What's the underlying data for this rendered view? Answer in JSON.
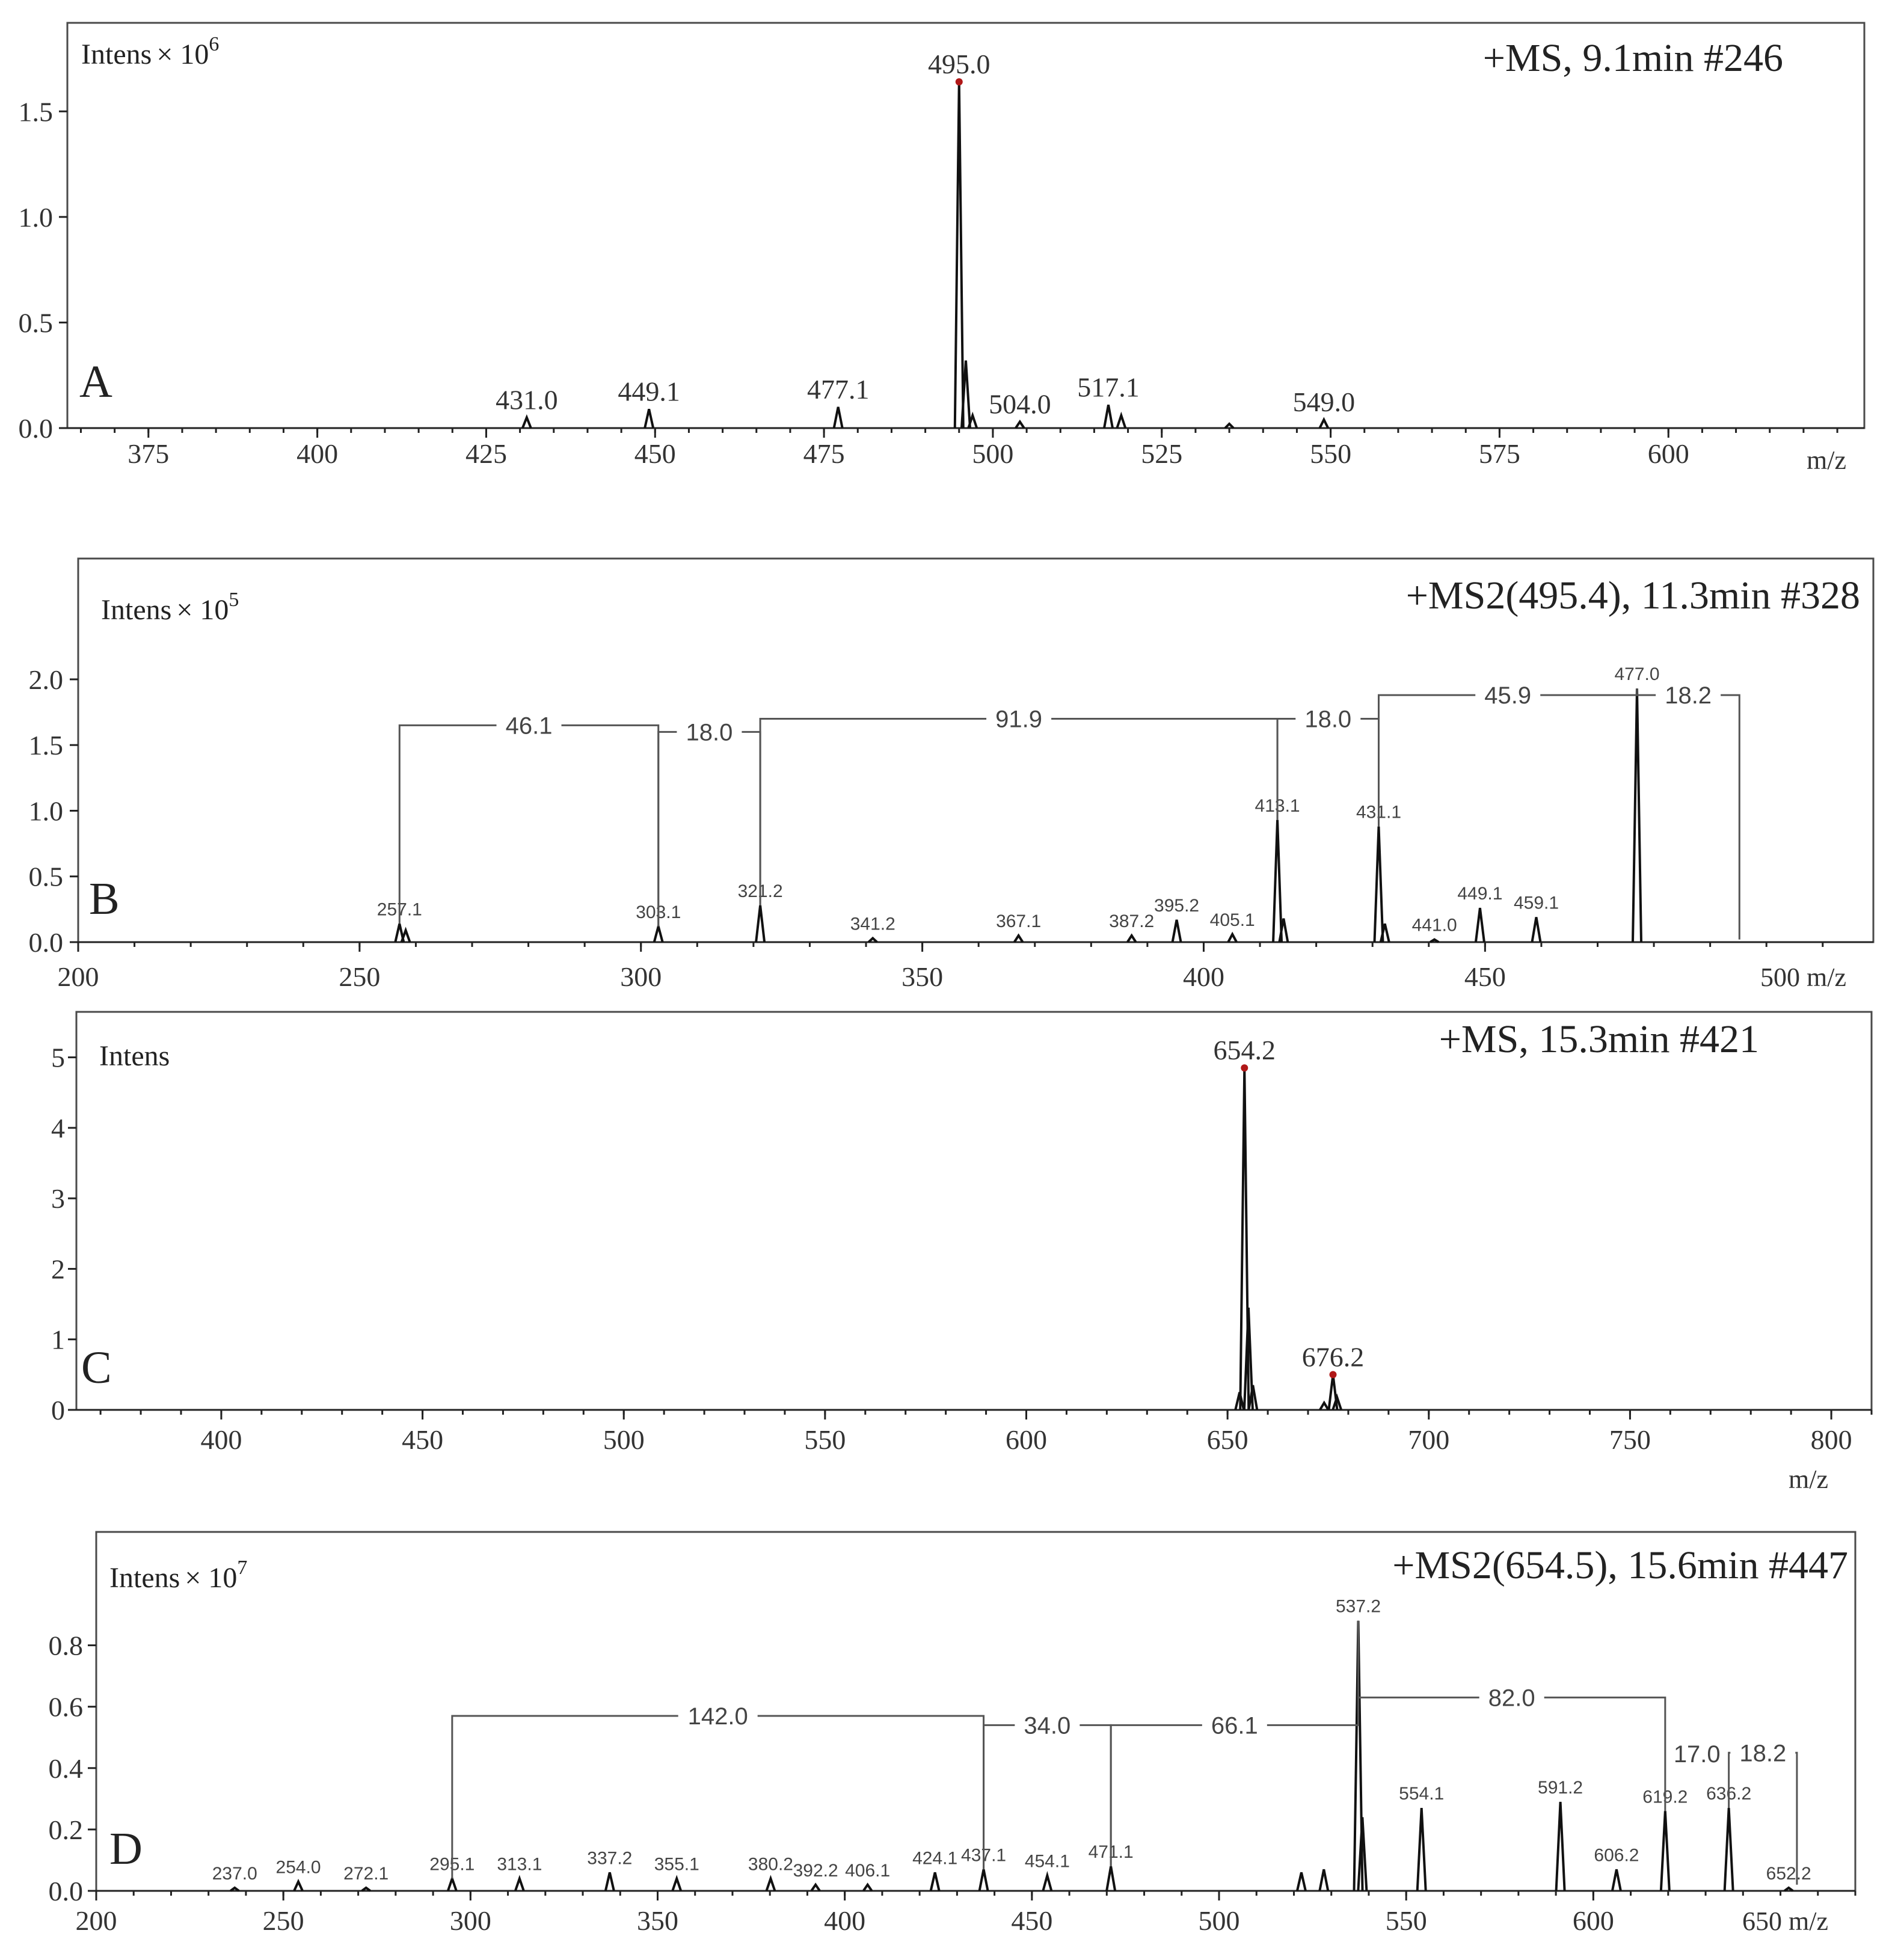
{
  "chart_data": [
    {
      "panel": "A",
      "type": "bar",
      "header": "+MS, 9.1min #246",
      "intens_label": "Intens",
      "intens_multiplier": "× 10",
      "intens_exponent": "6",
      "xunit": "m/z",
      "xlim": [
        363,
        629
      ],
      "ylim": [
        0,
        1.72
      ],
      "xticks": [
        375,
        400,
        425,
        450,
        475,
        500,
        525,
        550,
        575,
        600
      ],
      "yticks": [
        0.0,
        0.5,
        1.0,
        1.5
      ],
      "peaks": [
        {
          "x": 431.0,
          "y": 0.05,
          "label": "431.0"
        },
        {
          "x": 449.1,
          "y": 0.09,
          "label": "449.1"
        },
        {
          "x": 477.1,
          "y": 0.1,
          "label": "477.1"
        },
        {
          "x": 495.0,
          "y": 1.64,
          "label": "495.0"
        },
        {
          "x": 496.0,
          "y": 0.32,
          "label": ""
        },
        {
          "x": 497.0,
          "y": 0.06,
          "label": ""
        },
        {
          "x": 504.0,
          "y": 0.03,
          "label": "504.0"
        },
        {
          "x": 517.1,
          "y": 0.11,
          "label": "517.1"
        },
        {
          "x": 519.0,
          "y": 0.06,
          "label": ""
        },
        {
          "x": 535.0,
          "y": 0.02,
          "label": ""
        },
        {
          "x": 549.0,
          "y": 0.04,
          "label": "549.0"
        }
      ]
    },
    {
      "panel": "B",
      "type": "bar",
      "header": "+MS2(495.4), 11.3min #328",
      "intens_label": "Intens",
      "intens_multiplier": "× 10",
      "intens_exponent": "5",
      "xunit": "500 m/z",
      "xlim": [
        200,
        519
      ],
      "ylim": [
        0,
        2.32
      ],
      "xticks": [
        200,
        250,
        300,
        350,
        400,
        450
      ],
      "yticks": [
        0.0,
        0.5,
        1.0,
        1.5,
        2.0
      ],
      "peaks": [
        {
          "x": 257.1,
          "y": 0.14,
          "label": "257.1"
        },
        {
          "x": 258.2,
          "y": 0.09,
          "label": ""
        },
        {
          "x": 303.1,
          "y": 0.12,
          "label": "303.1"
        },
        {
          "x": 321.2,
          "y": 0.28,
          "label": "321.2"
        },
        {
          "x": 341.2,
          "y": 0.03,
          "label": "341.2"
        },
        {
          "x": 367.1,
          "y": 0.05,
          "label": "367.1"
        },
        {
          "x": 387.2,
          "y": 0.05,
          "label": "387.2"
        },
        {
          "x": 395.2,
          "y": 0.17,
          "label": "395.2"
        },
        {
          "x": 405.1,
          "y": 0.06,
          "label": "405.1"
        },
        {
          "x": 413.1,
          "y": 0.93,
          "label": "413.1"
        },
        {
          "x": 414.2,
          "y": 0.18,
          "label": ""
        },
        {
          "x": 431.1,
          "y": 0.88,
          "label": "431.1"
        },
        {
          "x": 432.2,
          "y": 0.14,
          "label": ""
        },
        {
          "x": 441.0,
          "y": 0.02,
          "label": "441.0"
        },
        {
          "x": 449.1,
          "y": 0.26,
          "label": "449.1"
        },
        {
          "x": 459.1,
          "y": 0.19,
          "label": "459.1"
        },
        {
          "x": 477.0,
          "y": 1.93,
          "label": "477.0"
        }
      ],
      "brackets": [
        {
          "x1": 257.1,
          "x2": 303.1,
          "level": 1.65,
          "label": "46.1"
        },
        {
          "x1": 303.1,
          "x2": 321.2,
          "level": 1.6,
          "label": "18.0"
        },
        {
          "x1": 321.2,
          "x2": 413.1,
          "level": 1.7,
          "label": "91.9"
        },
        {
          "x1": 413.1,
          "x2": 431.1,
          "level": 1.7,
          "label": "18.0"
        },
        {
          "x1": 431.1,
          "x2": 477.0,
          "level": 1.88,
          "label": "45.9"
        },
        {
          "x1": 477.0,
          "x2": 495.2,
          "level": 1.88,
          "label": "18.2"
        }
      ]
    },
    {
      "panel": "C",
      "type": "bar",
      "header": "+MS, 15.3min #421",
      "intens_label": "Intens",
      "xunit": "m/z",
      "xlim": [
        364,
        810
      ],
      "ylim": [
        0,
        5.5
      ],
      "xticks": [
        400,
        450,
        500,
        550,
        600,
        650,
        700,
        750,
        800
      ],
      "yticks": [
        0,
        1,
        2,
        3,
        4,
        5
      ],
      "ytick_labels": [
        "0",
        "1",
        "2",
        "3",
        "4",
        "5"
      ],
      "peaks": [
        {
          "x": 653.0,
          "y": 0.25,
          "label": ""
        },
        {
          "x": 654.2,
          "y": 4.85,
          "label": "654.2"
        },
        {
          "x": 655.2,
          "y": 1.45,
          "label": ""
        },
        {
          "x": 656.3,
          "y": 0.35,
          "label": ""
        },
        {
          "x": 674.0,
          "y": 0.1,
          "label": ""
        },
        {
          "x": 676.2,
          "y": 0.5,
          "label": "676.2"
        },
        {
          "x": 677.2,
          "y": 0.18,
          "label": ""
        }
      ]
    },
    {
      "panel": "D",
      "type": "bar",
      "header": "+MS2(654.5), 15.6min #447",
      "intens_label": "Intens",
      "intens_multiplier": "× 10",
      "intens_exponent": "7",
      "xunit": "650 m/z",
      "xlim": [
        200,
        670
      ],
      "ylim": [
        0,
        0.95
      ],
      "xticks": [
        200,
        250,
        300,
        350,
        400,
        450,
        500,
        550,
        600
      ],
      "yticks": [
        0.0,
        0.2,
        0.4,
        0.6,
        0.8
      ],
      "peaks": [
        {
          "x": 237.0,
          "y": 0.01,
          "label": "237.0"
        },
        {
          "x": 254.0,
          "y": 0.03,
          "label": "254.0"
        },
        {
          "x": 272.1,
          "y": 0.01,
          "label": "272.1"
        },
        {
          "x": 295.1,
          "y": 0.04,
          "label": "295.1"
        },
        {
          "x": 313.1,
          "y": 0.04,
          "label": "313.1"
        },
        {
          "x": 337.2,
          "y": 0.06,
          "label": "337.2"
        },
        {
          "x": 355.1,
          "y": 0.04,
          "label": "355.1"
        },
        {
          "x": 380.2,
          "y": 0.04,
          "label": "380.2"
        },
        {
          "x": 392.2,
          "y": 0.02,
          "label": "392.2"
        },
        {
          "x": 406.1,
          "y": 0.02,
          "label": "406.1"
        },
        {
          "x": 424.1,
          "y": 0.06,
          "label": "424.1"
        },
        {
          "x": 437.1,
          "y": 0.07,
          "label": "437.1"
        },
        {
          "x": 454.1,
          "y": 0.05,
          "label": "454.1"
        },
        {
          "x": 471.1,
          "y": 0.08,
          "label": "471.1"
        },
        {
          "x": 522.0,
          "y": 0.06,
          "label": ""
        },
        {
          "x": 528.0,
          "y": 0.07,
          "label": ""
        },
        {
          "x": 537.2,
          "y": 0.88,
          "label": "537.2"
        },
        {
          "x": 538.3,
          "y": 0.24,
          "label": ""
        },
        {
          "x": 554.1,
          "y": 0.27,
          "label": "554.1"
        },
        {
          "x": 591.2,
          "y": 0.29,
          "label": "591.2"
        },
        {
          "x": 606.2,
          "y": 0.07,
          "label": "606.2"
        },
        {
          "x": 619.2,
          "y": 0.26,
          "label": "619.2"
        },
        {
          "x": 636.2,
          "y": 0.27,
          "label": "636.2"
        },
        {
          "x": 652.2,
          "y": 0.01,
          "label": "652.2"
        }
      ],
      "brackets": [
        {
          "x1": 295.1,
          "x2": 437.1,
          "level": 0.57,
          "label": "142.0"
        },
        {
          "x1": 437.1,
          "x2": 471.1,
          "level": 0.54,
          "label": "34.0"
        },
        {
          "x1": 471.1,
          "x2": 537.2,
          "level": 0.54,
          "label": "66.1"
        },
        {
          "x1": 537.2,
          "x2": 619.2,
          "level": 0.63,
          "label": "82.0"
        },
        {
          "x1": 619.2,
          "x2": 636.2,
          "level": 0.4,
          "label": "17.0",
          "label_only": true
        },
        {
          "x1": 636.2,
          "x2": 654.4,
          "level": 0.45,
          "label": "18.2"
        }
      ]
    }
  ]
}
